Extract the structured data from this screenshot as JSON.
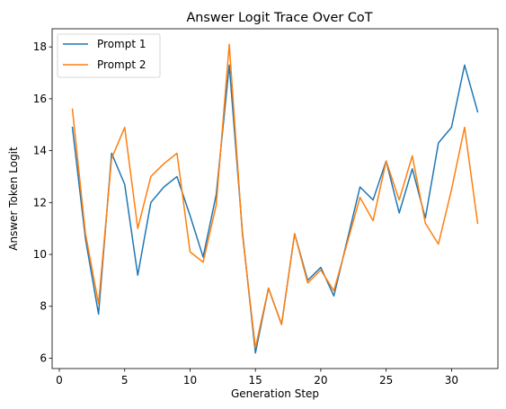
{
  "chart_data": {
    "type": "line",
    "title": "Answer Logit Trace Over CoT",
    "xlabel": "Generation Step",
    "ylabel": "Answer Token Logit",
    "xlim": [
      -0.55,
      33.55
    ],
    "ylim": [
      5.6,
      18.7
    ],
    "xticks": [
      0,
      5,
      10,
      15,
      20,
      25,
      30
    ],
    "yticks": [
      6,
      8,
      10,
      12,
      14,
      16,
      18
    ],
    "grid": false,
    "legend_position": "top-left",
    "x": [
      1,
      2,
      3,
      4,
      5,
      6,
      7,
      8,
      9,
      10,
      11,
      12,
      13,
      14,
      15,
      16,
      17,
      18,
      19,
      20,
      21,
      22,
      23,
      24,
      25,
      26,
      27,
      28,
      29,
      30,
      31,
      32
    ],
    "series": [
      {
        "name": "Prompt 1",
        "color": "#1f77b4",
        "values": [
          14.9,
          10.6,
          7.7,
          13.9,
          12.7,
          9.2,
          12.0,
          12.6,
          13.0,
          11.5,
          9.9,
          12.3,
          17.3,
          10.9,
          6.2,
          8.7,
          7.3,
          10.8,
          9.0,
          9.5,
          8.4,
          10.5,
          12.6,
          12.1,
          13.6,
          11.6,
          13.3,
          11.4,
          14.3,
          14.9,
          17.3,
          15.5
        ]
      },
      {
        "name": "Prompt 2",
        "color": "#ff7f0e",
        "values": [
          15.6,
          10.8,
          8.1,
          13.7,
          14.9,
          11.0,
          13.0,
          13.5,
          13.9,
          10.1,
          9.7,
          11.9,
          18.1,
          10.8,
          6.4,
          8.7,
          7.3,
          10.8,
          8.9,
          9.4,
          8.6,
          10.4,
          12.2,
          11.3,
          13.6,
          12.1,
          13.8,
          11.2,
          10.4,
          12.5,
          14.9,
          11.2
        ]
      }
    ]
  }
}
